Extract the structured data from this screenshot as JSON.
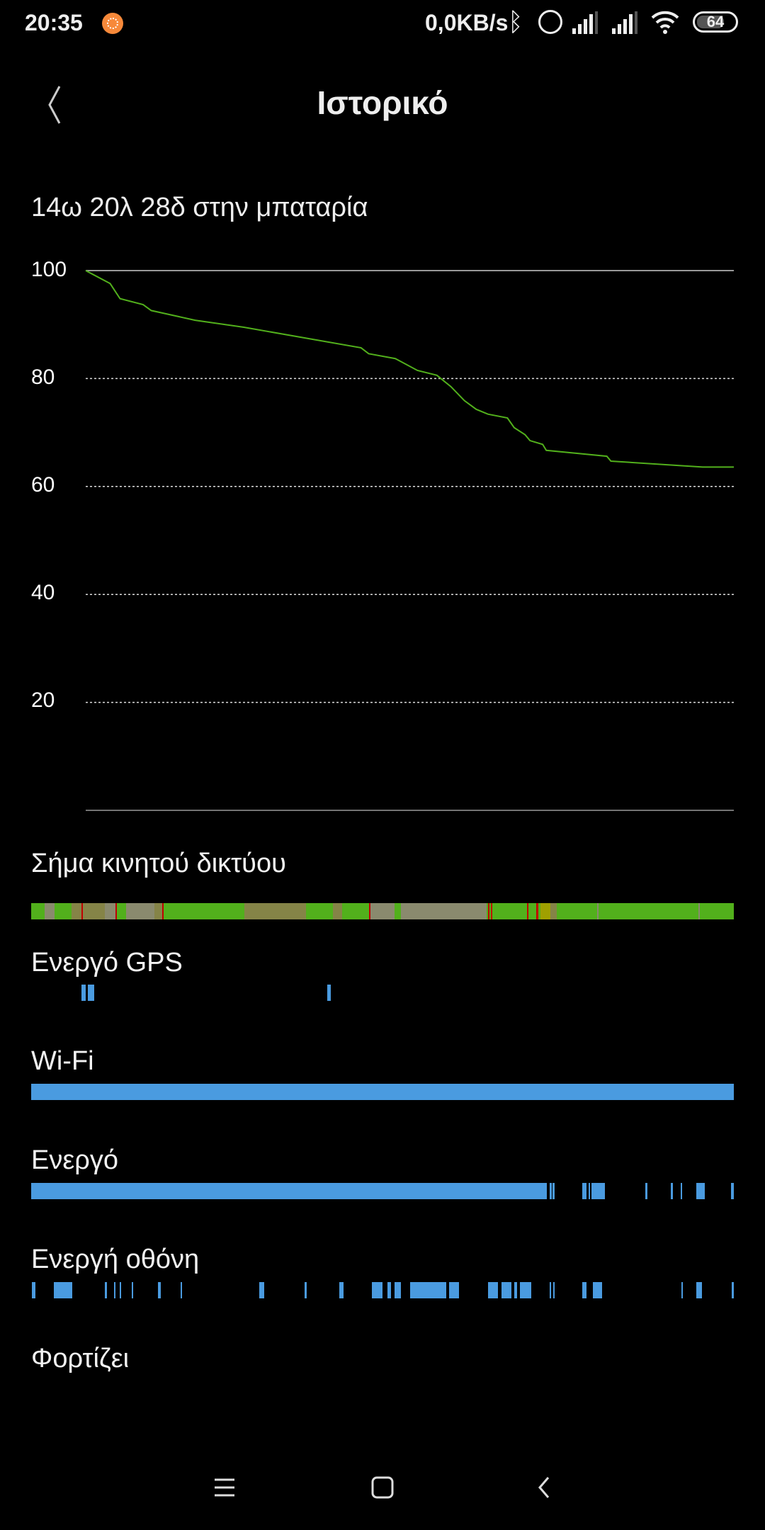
{
  "status_bar": {
    "time": "20:35",
    "net_speed": "0,0KB/s",
    "battery": "64"
  },
  "header": {
    "title": "Ιστορικό",
    "back_icon": "chevron-left-icon"
  },
  "summary": "14ω 20λ 28δ στην μπαταρία",
  "chart_data": {
    "type": "line",
    "title": "",
    "xlabel": "",
    "ylabel": "",
    "y_ticks": [
      "100",
      "80",
      "60",
      "40",
      "20"
    ],
    "ylim": [
      0,
      100
    ],
    "xlim_hours": [
      0,
      14.34
    ],
    "grid": "dotted horizontal",
    "color": "#52b01c",
    "x": [
      0,
      0.54,
      0.76,
      1.27,
      1.45,
      2.42,
      3.5,
      6.09,
      6.26,
      6.85,
      7.34,
      7.77,
      8.08,
      8.38,
      8.64,
      8.9,
      9.33,
      9.48,
      9.72,
      9.83,
      10.11,
      10.19,
      11.53,
      11.62,
      13.65,
      14.34
    ],
    "y": [
      100,
      97.6,
      94.8,
      93.7,
      92.6,
      90.8,
      89.5,
      85.7,
      84.6,
      83.7,
      81.5,
      80.6,
      78.5,
      75.9,
      74.3,
      73.4,
      72.7,
      70.9,
      69.6,
      68.5,
      67.8,
      66.7,
      65.6,
      64.7,
      63.6,
      63.6
    ]
  },
  "tracks": [
    {
      "label": "Σήμα κινητού δικτύου",
      "base": "#52b01c",
      "segments": [
        [
          0.28,
          0.47,
          "#8a8a6e"
        ],
        [
          0.82,
          0.84,
          "#c00000"
        ],
        [
          0.83,
          1.51,
          "#858447"
        ],
        [
          1.03,
          1.05,
          "#c00000"
        ],
        [
          1.51,
          1.73,
          "#8a8a6e"
        ],
        [
          1.72,
          1.74,
          "#c00000"
        ],
        [
          1.94,
          2.52,
          "#8a8a6e"
        ],
        [
          2.52,
          2.68,
          "#858447"
        ],
        [
          2.67,
          2.69,
          "#c00000"
        ],
        [
          4.35,
          5.61,
          "#858447"
        ],
        [
          6.16,
          6.35,
          "#858447"
        ],
        [
          6.89,
          7.42,
          "#8a8a6e"
        ],
        [
          6.89,
          6.91,
          "#c00000"
        ],
        [
          7.54,
          9.3,
          "#8a8a6e"
        ],
        [
          9.32,
          9.34,
          "#c00000"
        ],
        [
          9.38,
          9.4,
          "#c00000"
        ],
        [
          10.12,
          10.14,
          "#c00000"
        ],
        [
          10.31,
          10.35,
          "#c00000"
        ],
        [
          10.39,
          10.6,
          "#a0a000"
        ],
        [
          10.6,
          10.72,
          "#858447"
        ],
        [
          11.55,
          11.57,
          "#8a8a6e"
        ],
        [
          13.62,
          13.64,
          "#8a8a6e"
        ]
      ]
    },
    {
      "label": "Ενεργό GPS",
      "base": "",
      "color": "#4a9be0",
      "segments": [
        [
          1.02,
          1.12
        ],
        [
          1.16,
          1.29
        ],
        [
          6.04,
          6.12
        ]
      ]
    },
    {
      "label": "Wi-Fi",
      "base": "",
      "color": "#4a9be0",
      "segments": [
        [
          0,
          14.34
        ]
      ]
    },
    {
      "label": "Ενεργό",
      "base": "",
      "color": "#4a9be0",
      "segments": [
        [
          0,
          10.52
        ],
        [
          10.58,
          10.62
        ],
        [
          10.64,
          10.68
        ],
        [
          11.25,
          11.33
        ],
        [
          11.37,
          11.41
        ],
        [
          11.43,
          11.71
        ],
        [
          12.53,
          12.57
        ],
        [
          13.05,
          13.09
        ],
        [
          13.25,
          13.29
        ],
        [
          13.57,
          13.75
        ],
        [
          14.28,
          14.34
        ]
      ]
    },
    {
      "label": "Ενεργή οθόνη",
      "base": "",
      "color": "#4a9be0",
      "segments": [
        [
          0.02,
          0.08
        ],
        [
          0.46,
          0.84
        ],
        [
          1.51,
          1.54
        ],
        [
          1.69,
          1.72
        ],
        [
          1.81,
          1.84
        ],
        [
          2.05,
          2.08
        ],
        [
          2.59,
          2.65
        ],
        [
          3.05,
          3.08
        ],
        [
          4.66,
          4.76
        ],
        [
          5.58,
          5.62
        ],
        [
          6.29,
          6.37
        ],
        [
          6.95,
          7.17
        ],
        [
          7.27,
          7.35
        ],
        [
          7.41,
          7.55
        ],
        [
          7.73,
          8.47
        ],
        [
          8.53,
          8.73
        ],
        [
          9.32,
          9.52
        ],
        [
          9.6,
          9.8
        ],
        [
          9.86,
          9.92
        ],
        [
          9.98,
          10.2
        ],
        [
          10.58,
          10.61
        ],
        [
          10.66,
          10.69
        ],
        [
          11.25,
          11.33
        ],
        [
          11.47,
          11.65
        ],
        [
          13.27,
          13.3
        ],
        [
          13.57,
          13.69
        ],
        [
          14.3,
          14.34
        ]
      ]
    },
    {
      "label": "Φορτίζει",
      "base": "",
      "color": "#4a9be0",
      "segments": []
    }
  ],
  "nav_bar": {
    "menu": "menu-icon",
    "home": "home-icon",
    "back": "back-icon"
  }
}
